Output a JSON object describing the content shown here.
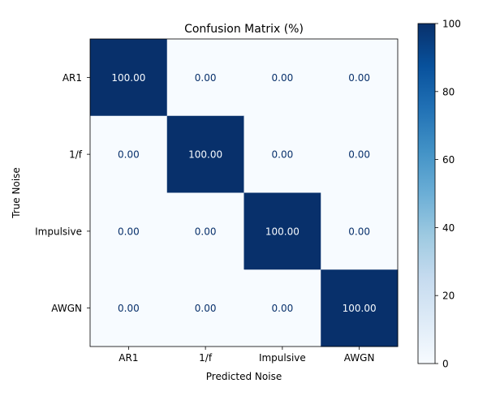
{
  "chart_data": {
    "type": "heatmap",
    "title": "Confusion Matrix (%)",
    "xlabel": "Predicted Noise",
    "ylabel": "True Noise",
    "x_categories": [
      "AR1",
      "1/f",
      "Impulsive",
      "AWGN"
    ],
    "y_categories": [
      "AR1",
      "1/f",
      "Impulsive",
      "AWGN"
    ],
    "values": [
      [
        100.0,
        0.0,
        0.0,
        0.0
      ],
      [
        0.0,
        100.0,
        0.0,
        0.0
      ],
      [
        0.0,
        0.0,
        100.0,
        0.0
      ],
      [
        0.0,
        0.0,
        0.0,
        100.0
      ]
    ],
    "value_format_decimals": 2,
    "colormap": "Blues",
    "color_range": [
      0,
      100
    ],
    "colorbar": {
      "ticks": [
        0,
        20,
        40,
        60,
        80,
        100
      ]
    },
    "colors": {
      "low": "#f7fbff",
      "high": "#08306b",
      "text_on_dark": "#f7fbff",
      "text_on_light": "#08306b"
    },
    "grid": false
  }
}
